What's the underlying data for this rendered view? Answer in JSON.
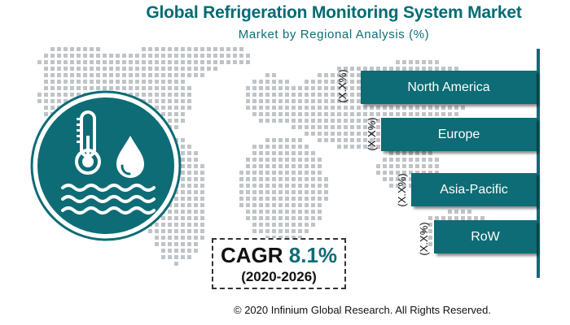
{
  "chart_data": {
    "type": "bar",
    "title": "Global Refrigeration Monitoring System Market",
    "subtitle": "Market by Regional Analysis (%)",
    "categories": [
      "North America",
      "Europe",
      "Asia-Pacific",
      "RoW"
    ],
    "value_labels": [
      "(X.X%)",
      "(X.X%)",
      "(X.X%)",
      "(X.X%)"
    ],
    "orientation": "horizontal",
    "bar_color": "#0d6c75"
  },
  "cagr": {
    "word": "CAGR",
    "rate": "8.1%",
    "period": "(2020-2026)"
  },
  "copyright": "© 2020 Infinium Global Research. All Rights Reserved.",
  "icons": {
    "main": "thermometer-water-drop-waves-icon",
    "background": "dotted-world-map"
  },
  "colors": {
    "primary": "#0d6c75",
    "map_dots": "#bfc4c8",
    "title": "#006b73"
  }
}
